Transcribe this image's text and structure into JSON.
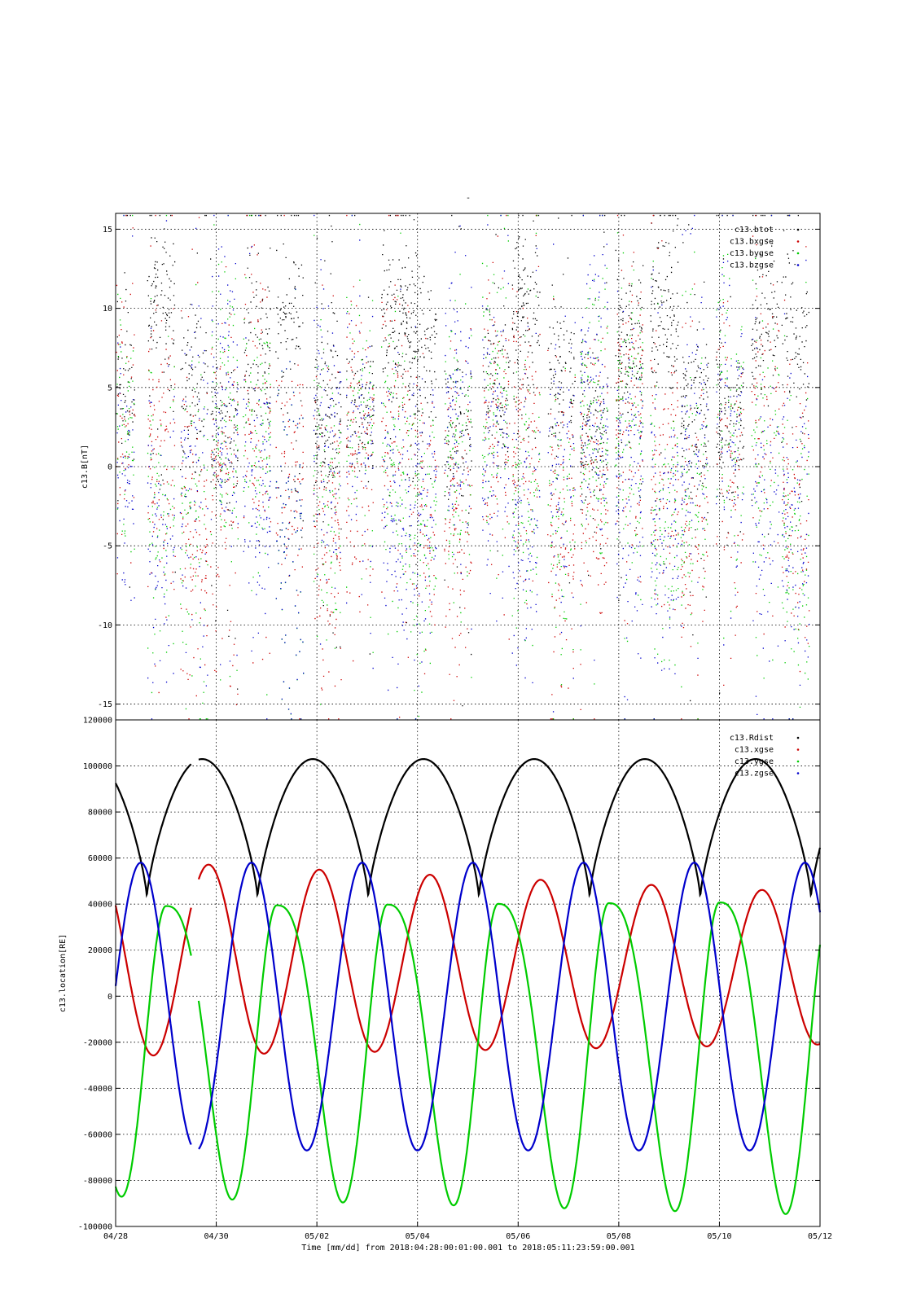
{
  "header_mark": "-",
  "xaxis": {
    "label": "Time [mm/dd]  from 2018:04:28:00:01:00.001  to  2018:05:11:23:59:00.001",
    "start_day": "04/28",
    "end_day": "05/12",
    "ticks": [
      "04/28",
      "04/30",
      "05/02",
      "05/04",
      "05/06",
      "05/08",
      "05/10",
      "05/12"
    ]
  },
  "chart_data": [
    {
      "type": "scatter",
      "ylabel": "c13.B[nT]",
      "ylim": [
        -16,
        16
      ],
      "yticks": [
        "15",
        "10",
        "5",
        "0",
        "-5",
        "-10",
        "-15"
      ],
      "grid": true,
      "legend_position": "top-right",
      "series": [
        {
          "name": "c13.btot",
          "color": "#000000"
        },
        {
          "name": "c13.bxgse",
          "color": "#cc0000"
        },
        {
          "name": "c13.bygse",
          "color": "#00cc00"
        },
        {
          "name": "c13.bzgse",
          "color": "#0000cc"
        }
      ]
    },
    {
      "type": "line",
      "ylabel": "c13.location[RE]",
      "ylim": [
        -100000,
        120000
      ],
      "yticks": [
        "120000",
        "100000",
        "80000",
        "60000",
        "40000",
        "20000",
        "0",
        "-20000",
        "-40000",
        "-60000",
        "-80000",
        "-100000"
      ],
      "grid": true,
      "legend_position": "top-right",
      "gap_days": [
        1.5,
        1.65
      ],
      "series": [
        {
          "name": "c13.Rdist",
          "color": "#000000",
          "min": 43000,
          "max": 103000
        },
        {
          "name": "c13.xgse",
          "color": "#cc0000",
          "range_start": [
            -26000,
            59000
          ],
          "range_end": [
            -21000,
            45000
          ]
        },
        {
          "name": "c13.ygse",
          "color": "#00cc00",
          "range_start": [
            -87000,
            39000
          ],
          "range_end": [
            -95000,
            41000
          ]
        },
        {
          "name": "c13.zgse",
          "color": "#0000cc",
          "min": -67000,
          "max": 58000
        }
      ]
    }
  ]
}
